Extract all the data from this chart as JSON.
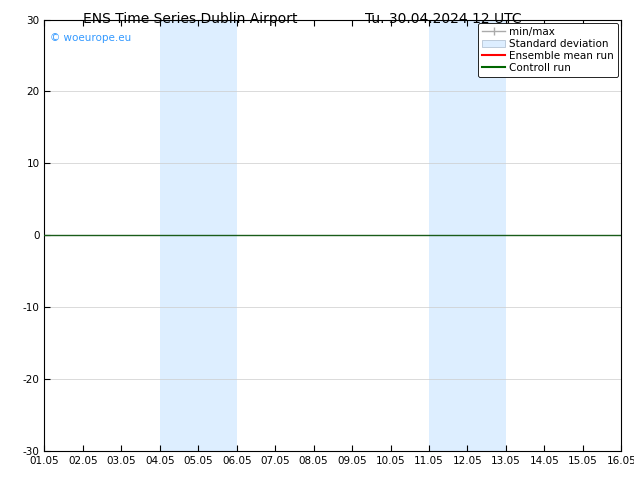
{
  "title_left": "ENS Time Series Dublin Airport",
  "title_right": "Tu. 30.04.2024 12 UTC",
  "xlabel_ticks": [
    "01.05",
    "02.05",
    "03.05",
    "04.05",
    "05.05",
    "06.05",
    "07.05",
    "08.05",
    "09.05",
    "10.05",
    "11.05",
    "12.05",
    "13.05",
    "14.05",
    "15.05",
    "16.05"
  ],
  "yticks": [
    -30,
    -20,
    -10,
    0,
    10,
    20,
    30
  ],
  "ylim": [
    -30,
    30
  ],
  "xlim": [
    0,
    15
  ],
  "shaded_regions": [
    {
      "xmin": 3,
      "xmax": 5,
      "color": "#ddeeff"
    },
    {
      "xmin": 10,
      "xmax": 12,
      "color": "#ddeeff"
    }
  ],
  "hline_y": 0,
  "hline_color": "#1a5c1a",
  "hline_lw": 1.0,
  "watermark": "© woeurope.eu",
  "watermark_color": "#3399ff",
  "legend_items": [
    {
      "label": "min/max",
      "color": "#aaaaaa",
      "lw": 1.0
    },
    {
      "label": "Standard deviation",
      "color": "#ddeeff",
      "lw": 8
    },
    {
      "label": "Ensemble mean run",
      "color": "#ff0000",
      "lw": 1.5
    },
    {
      "label": "Controll run",
      "color": "#006600",
      "lw": 1.5
    }
  ],
  "grid_color": "#cccccc",
  "bg_color": "#ffffff",
  "plot_bg_color": "#ffffff",
  "title_fontsize": 10,
  "tick_fontsize": 7.5,
  "legend_fontsize": 7.5,
  "fig_width": 6.34,
  "fig_height": 4.9,
  "fig_dpi": 100
}
